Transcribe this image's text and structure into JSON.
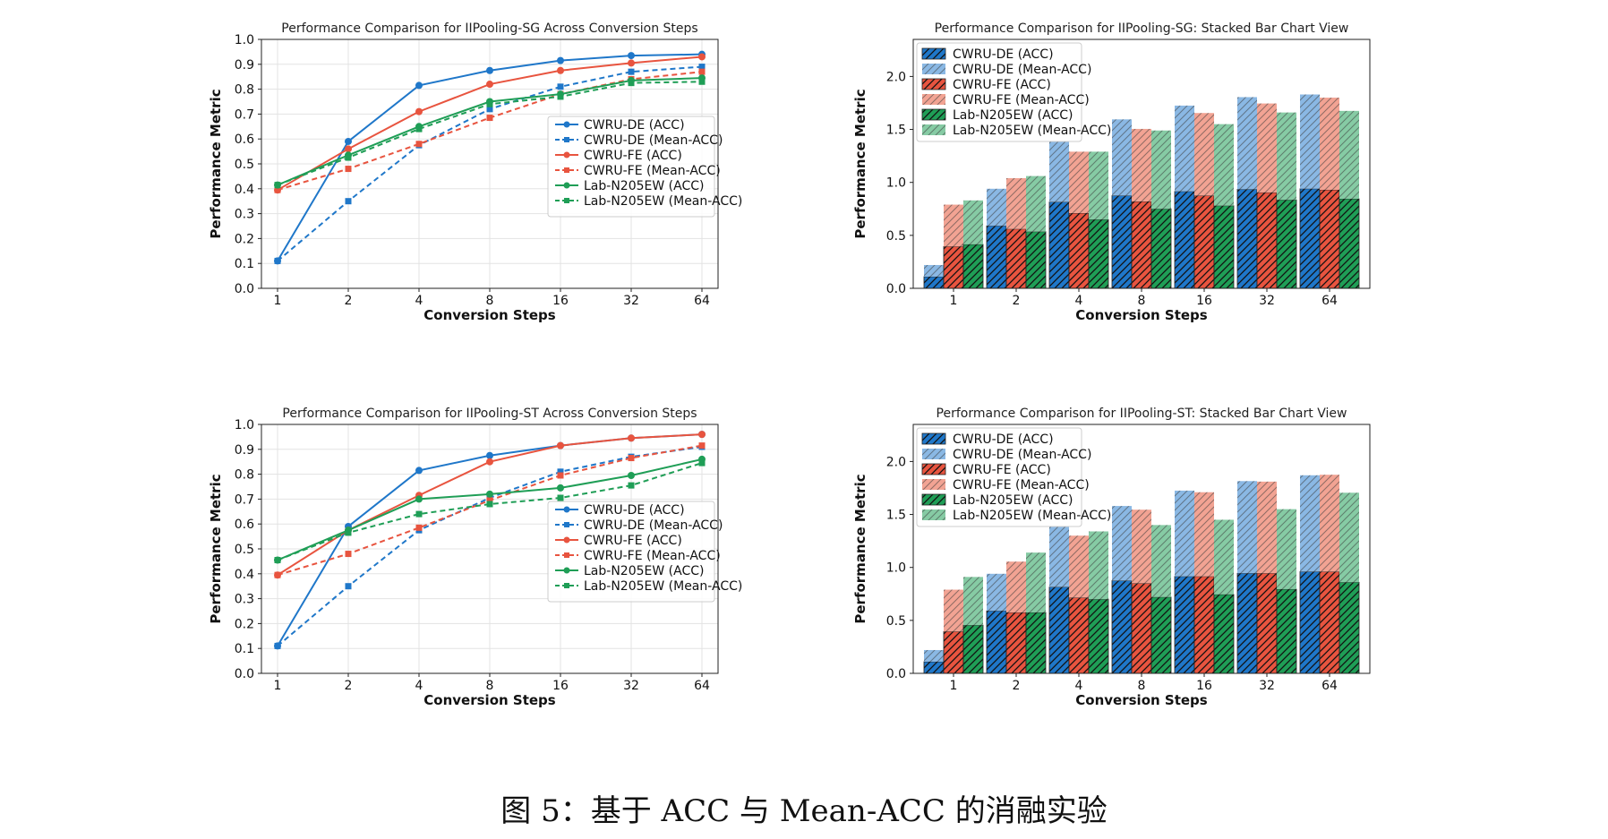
{
  "caption": "图 5：基于 ACC 与 Mean-ACC 的消融实验",
  "colors": {
    "CWRU-DE": "#1f77c9",
    "CWRU-FE": "#e8543f",
    "Lab-N205EW": "#1f9e56",
    "CWRU-DE-light": "#8ab8e4",
    "CWRU-FE-light": "#f2a393",
    "Lab-N205EW-light": "#86cba4"
  },
  "chart_data": [
    {
      "id": "line-sg",
      "type": "line",
      "title": "Performance Comparison for IIPooling-SG Across Conversion Steps",
      "xlabel": "Conversion Steps",
      "ylabel": "Performance Metric",
      "categories": [
        "1",
        "2",
        "4",
        "8",
        "16",
        "32",
        "64"
      ],
      "ylim": [
        0,
        1.0
      ],
      "yticks": [
        "0.0",
        "0.1",
        "0.2",
        "0.3",
        "0.4",
        "0.5",
        "0.6",
        "0.7",
        "0.8",
        "0.9",
        "1.0"
      ],
      "grid": true,
      "legend": "center-right",
      "series": [
        {
          "name": "CWRU-DE (ACC)",
          "color": "#1f77c9",
          "style": "solid",
          "marker": "circle",
          "values": [
            0.11,
            0.59,
            0.815,
            0.875,
            0.915,
            0.935,
            0.94
          ]
        },
        {
          "name": "CWRU-DE (Mean-ACC)",
          "color": "#1f77c9",
          "style": "dashed",
          "marker": "square",
          "values": [
            0.11,
            0.35,
            0.575,
            0.72,
            0.81,
            0.87,
            0.89
          ]
        },
        {
          "name": "CWRU-FE (ACC)",
          "color": "#e8543f",
          "style": "solid",
          "marker": "circle",
          "values": [
            0.395,
            0.56,
            0.71,
            0.82,
            0.875,
            0.905,
            0.93
          ]
        },
        {
          "name": "CWRU-FE (Mean-ACC)",
          "color": "#e8543f",
          "style": "dashed",
          "marker": "square",
          "values": [
            0.395,
            0.48,
            0.58,
            0.685,
            0.78,
            0.84,
            0.87
          ]
        },
        {
          "name": "Lab-N205EW (ACC)",
          "color": "#1f9e56",
          "style": "solid",
          "marker": "circle",
          "values": [
            0.415,
            0.535,
            0.65,
            0.75,
            0.78,
            0.835,
            0.845
          ]
        },
        {
          "name": "Lab-N205EW (Mean-ACC)",
          "color": "#1f9e56",
          "style": "dashed",
          "marker": "square",
          "values": [
            0.415,
            0.525,
            0.64,
            0.74,
            0.77,
            0.825,
            0.83
          ]
        }
      ]
    },
    {
      "id": "bar-sg",
      "type": "bar",
      "title": "Performance Comparison for IIPooling-SG: Stacked Bar Chart View",
      "xlabel": "Conversion Steps",
      "ylabel": "Performance Metric",
      "categories": [
        "1",
        "2",
        "4",
        "8",
        "16",
        "32",
        "64"
      ],
      "ylim": [
        0,
        2.35
      ],
      "yticks": [
        "0.0",
        "0.5",
        "1.0",
        "1.5",
        "2.0"
      ],
      "stacked": true,
      "legend": "top-left",
      "legend_labels": [
        "CWRU-DE (ACC)",
        "CWRU-DE (Mean-ACC)",
        "CWRU-FE (ACC)",
        "CWRU-FE (Mean-ACC)",
        "Lab-N205EW (ACC)",
        "Lab-N205EW (Mean-ACC)"
      ],
      "groups": [
        {
          "name": "CWRU-DE",
          "acc": [
            0.11,
            0.59,
            0.815,
            0.875,
            0.915,
            0.935,
            0.94
          ],
          "mean_acc": [
            0.11,
            0.35,
            0.575,
            0.72,
            0.81,
            0.87,
            0.89
          ]
        },
        {
          "name": "CWRU-FE",
          "acc": [
            0.395,
            0.56,
            0.71,
            0.82,
            0.875,
            0.905,
            0.93
          ],
          "mean_acc": [
            0.395,
            0.48,
            0.58,
            0.685,
            0.78,
            0.84,
            0.87
          ]
        },
        {
          "name": "Lab-N205EW",
          "acc": [
            0.415,
            0.535,
            0.65,
            0.75,
            0.78,
            0.835,
            0.845
          ],
          "mean_acc": [
            0.415,
            0.525,
            0.64,
            0.74,
            0.77,
            0.825,
            0.83
          ]
        }
      ]
    },
    {
      "id": "line-st",
      "type": "line",
      "title": "Performance Comparison for IIPooling-ST Across Conversion Steps",
      "xlabel": "Conversion Steps",
      "ylabel": "Performance Metric",
      "categories": [
        "1",
        "2",
        "4",
        "8",
        "16",
        "32",
        "64"
      ],
      "ylim": [
        0,
        1.0
      ],
      "yticks": [
        "0.0",
        "0.1",
        "0.2",
        "0.3",
        "0.4",
        "0.5",
        "0.6",
        "0.7",
        "0.8",
        "0.9",
        "1.0"
      ],
      "grid": true,
      "legend": "center-right",
      "series": [
        {
          "name": "CWRU-DE (ACC)",
          "color": "#1f77c9",
          "style": "solid",
          "marker": "circle",
          "values": [
            0.11,
            0.59,
            0.815,
            0.875,
            0.915,
            0.945,
            0.96
          ]
        },
        {
          "name": "CWRU-DE (Mean-ACC)",
          "color": "#1f77c9",
          "style": "dashed",
          "marker": "square",
          "values": [
            0.11,
            0.35,
            0.575,
            0.705,
            0.81,
            0.87,
            0.91
          ]
        },
        {
          "name": "CWRU-FE (ACC)",
          "color": "#e8543f",
          "style": "solid",
          "marker": "circle",
          "values": [
            0.395,
            0.575,
            0.715,
            0.85,
            0.915,
            0.945,
            0.96
          ]
        },
        {
          "name": "CWRU-FE (Mean-ACC)",
          "color": "#e8543f",
          "style": "dashed",
          "marker": "square",
          "values": [
            0.395,
            0.48,
            0.585,
            0.695,
            0.795,
            0.865,
            0.915
          ]
        },
        {
          "name": "Lab-N205EW (ACC)",
          "color": "#1f9e56",
          "style": "solid",
          "marker": "circle",
          "values": [
            0.455,
            0.575,
            0.7,
            0.72,
            0.745,
            0.795,
            0.86
          ]
        },
        {
          "name": "Lab-N205EW (Mean-ACC)",
          "color": "#1f9e56",
          "style": "dashed",
          "marker": "square",
          "values": [
            0.455,
            0.565,
            0.64,
            0.68,
            0.705,
            0.755,
            0.845
          ]
        }
      ]
    },
    {
      "id": "bar-st",
      "type": "bar",
      "title": "Performance Comparison for IIPooling-ST: Stacked Bar Chart View",
      "xlabel": "Conversion Steps",
      "ylabel": "Performance Metric",
      "categories": [
        "1",
        "2",
        "4",
        "8",
        "16",
        "32",
        "64"
      ],
      "ylim": [
        0,
        2.35
      ],
      "yticks": [
        "0.0",
        "0.5",
        "1.0",
        "1.5",
        "2.0"
      ],
      "stacked": true,
      "legend": "top-left",
      "legend_labels": [
        "CWRU-DE (ACC)",
        "CWRU-DE (Mean-ACC)",
        "CWRU-FE (ACC)",
        "CWRU-FE (Mean-ACC)",
        "Lab-N205EW (ACC)",
        "Lab-N205EW (Mean-ACC)"
      ],
      "groups": [
        {
          "name": "CWRU-DE",
          "acc": [
            0.11,
            0.59,
            0.815,
            0.875,
            0.915,
            0.945,
            0.96
          ],
          "mean_acc": [
            0.11,
            0.35,
            0.575,
            0.705,
            0.81,
            0.87,
            0.91
          ]
        },
        {
          "name": "CWRU-FE",
          "acc": [
            0.395,
            0.575,
            0.715,
            0.85,
            0.915,
            0.945,
            0.96
          ],
          "mean_acc": [
            0.395,
            0.48,
            0.585,
            0.695,
            0.795,
            0.865,
            0.915
          ]
        },
        {
          "name": "Lab-N205EW",
          "acc": [
            0.455,
            0.575,
            0.7,
            0.72,
            0.745,
            0.795,
            0.86
          ],
          "mean_acc": [
            0.455,
            0.565,
            0.64,
            0.68,
            0.705,
            0.755,
            0.845
          ]
        }
      ]
    }
  ]
}
